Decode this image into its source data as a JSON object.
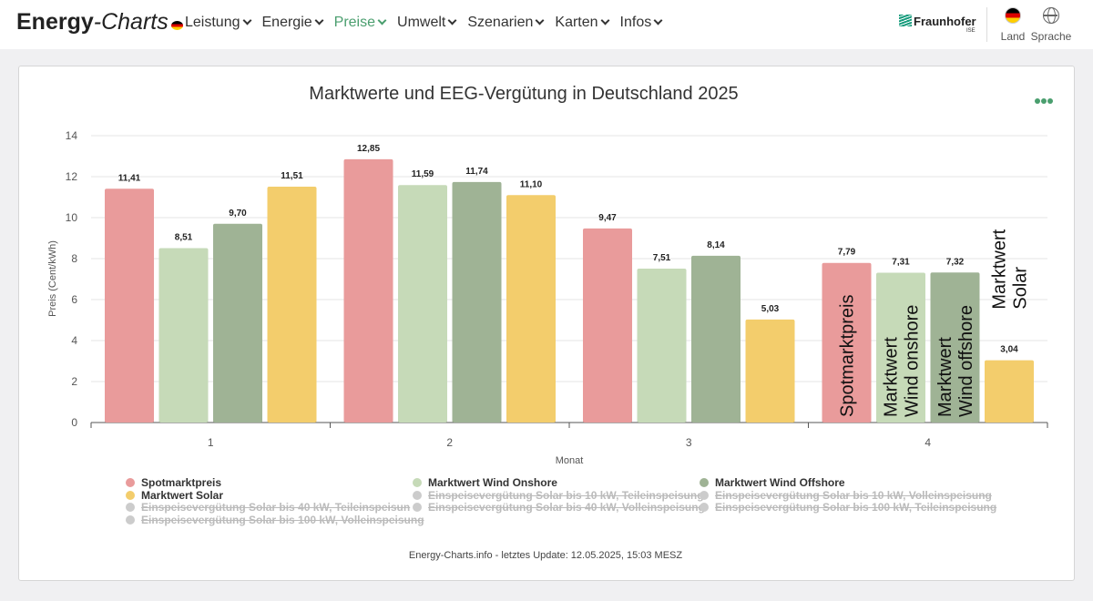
{
  "header": {
    "logo_bold": "Energy",
    "logo_italic": "-Charts",
    "nav": [
      {
        "label": "Leistung",
        "active": false
      },
      {
        "label": "Energie",
        "active": false
      },
      {
        "label": "Preise",
        "active": true
      },
      {
        "label": "Umwelt",
        "active": false
      },
      {
        "label": "Szenarien",
        "active": false
      },
      {
        "label": "Karten",
        "active": false
      },
      {
        "label": "Infos",
        "active": false
      }
    ],
    "fraunhofer": "Fraunhofer",
    "fraunhofer_sub": "ISE",
    "land_label": "Land",
    "sprache_label": "Sprache",
    "accent_color": "#4a9e6e"
  },
  "chart_data": {
    "type": "bar",
    "title": "Marktwerte und EEG-Vergütung in Deutschland 2025",
    "xlabel": "Monat",
    "ylabel": "Preis (Cent/kWh)",
    "categories": [
      "1",
      "2",
      "3",
      "4"
    ],
    "ylim": [
      0,
      14
    ],
    "yticks": [
      "0",
      "2",
      "4",
      "6",
      "8",
      "10",
      "12",
      "14"
    ],
    "grid": true,
    "series": [
      {
        "name": "Spotmarktpreis",
        "color": "#e99b9b",
        "values": [
          11.41,
          12.85,
          9.47,
          7.79
        ],
        "labels": [
          "11,41",
          "12,85",
          "9,47",
          "7,79"
        ]
      },
      {
        "name": "Marktwert Wind Onshore",
        "color": "#c6dab8",
        "values": [
          8.51,
          11.59,
          7.51,
          7.31
        ],
        "labels": [
          "8,51",
          "11,59",
          "7,51",
          "7,31"
        ]
      },
      {
        "name": "Marktwert Wind Offshore",
        "color": "#9fb395",
        "values": [
          9.7,
          11.74,
          8.14,
          7.32
        ],
        "labels": [
          "9,70",
          "11,74",
          "8,14",
          "7,32"
        ]
      },
      {
        "name": "Marktwert Solar",
        "color": "#f3cd6c",
        "values": [
          11.51,
          11.1,
          5.03,
          3.04
        ],
        "labels": [
          "11,51",
          "11,10",
          "5,03",
          "3,04"
        ]
      }
    ],
    "annotations": [
      {
        "series": 0,
        "lines": [
          "Spotmarktpreis"
        ]
      },
      {
        "series": 1,
        "lines": [
          "Marktwert",
          "Wind onshore"
        ]
      },
      {
        "series": 2,
        "lines": [
          "Marktwert",
          "Wind offshore"
        ]
      },
      {
        "series": 3,
        "lines": [
          "Marktwert",
          "Solar"
        ]
      }
    ],
    "legend": [
      {
        "name": "Spotmarktpreis",
        "visible": true,
        "color": "#e99b9b"
      },
      {
        "name": "Marktwert Wind Onshore",
        "visible": true,
        "color": "#c6dab8"
      },
      {
        "name": "Marktwert Wind Offshore",
        "visible": true,
        "color": "#9fb395"
      },
      {
        "name": "Marktwert Solar",
        "visible": true,
        "color": "#f3cd6c"
      },
      {
        "name": "Einspeisevergütung Solar bis 10 kW, Teileinspeisung",
        "visible": false
      },
      {
        "name": "Einspeisevergütung Solar bis 10 kW, Volleinspeisung",
        "visible": false
      },
      {
        "name": "Einspeisevergütung Solar bis 40 kW, Teileinspeisun",
        "visible": false
      },
      {
        "name": "Einspeisevergütung Solar bis 40 kW, Volleinspeisung",
        "visible": false
      },
      {
        "name": "Einspeisevergütung Solar bis 100 kW, Teileinspeisung",
        "visible": false
      },
      {
        "name": "Einspeisevergütung Solar bis 100 kW, Volleinspeisung",
        "visible": false
      }
    ],
    "legend_placement": "bottom"
  },
  "credits": "Energy-Charts.info - letztes Update: 12.05.2025, 15:03 MESZ"
}
